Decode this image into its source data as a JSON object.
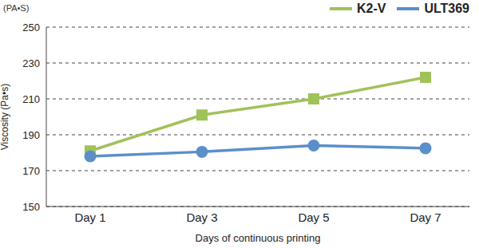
{
  "chart_data": {
    "type": "line",
    "annotation": "(PA•S)",
    "x_label": "Days of continuous printing",
    "y_label": "Viscosity (Pa•s)",
    "categories": [
      "Day 1",
      "Day 3",
      "Day 5",
      "Day 7"
    ],
    "series": [
      {
        "name": "K2-V",
        "color": "#a0c25a",
        "marker": "square",
        "values": [
          181,
          201,
          210,
          222
        ]
      },
      {
        "name": "ULT369",
        "color": "#5b8fc9",
        "marker": "circle",
        "values": [
          178,
          180.5,
          184,
          182.5
        ]
      }
    ],
    "ylim": [
      150,
      250
    ],
    "yticks": [
      150,
      170,
      190,
      210,
      230,
      250
    ],
    "grid": true,
    "legend": "top-right"
  }
}
